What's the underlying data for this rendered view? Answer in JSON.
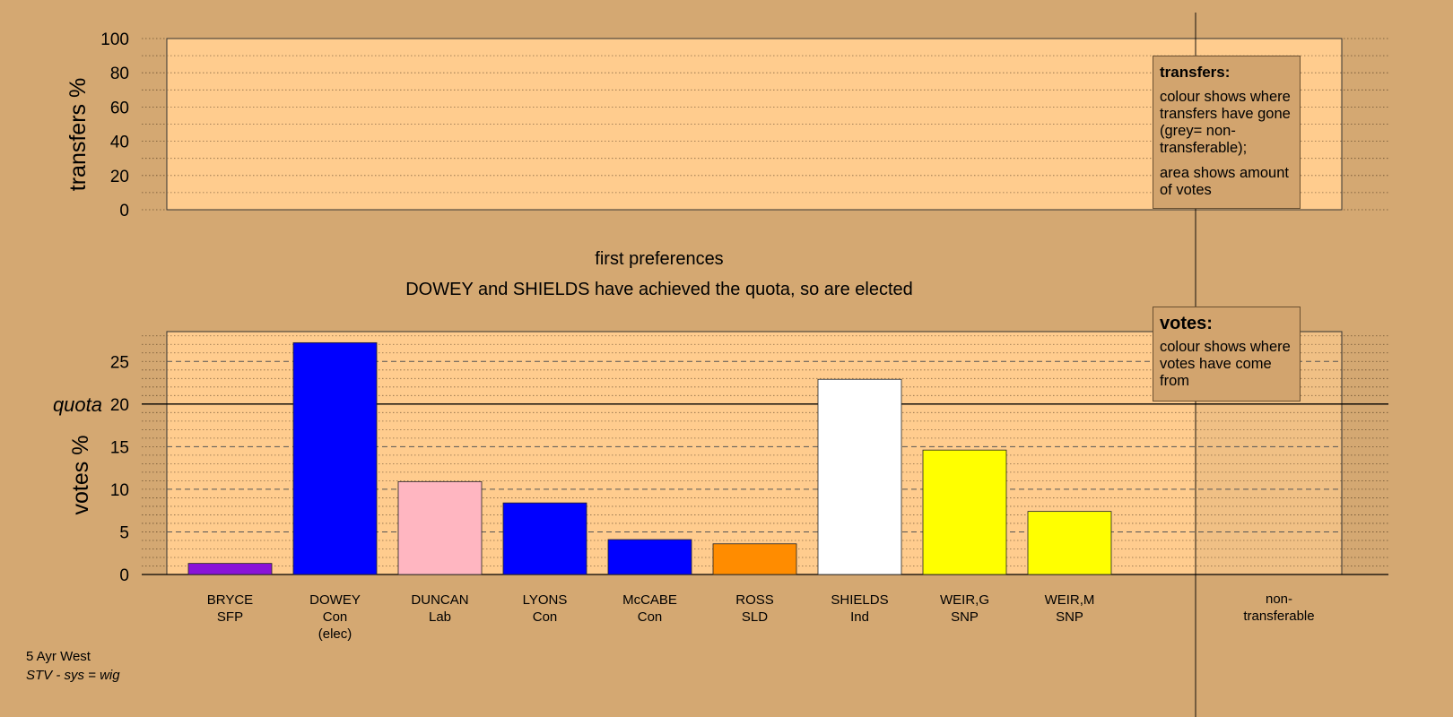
{
  "chart_data": [
    {
      "type": "area",
      "ylabel": "transfers %",
      "ylim": [
        0,
        100
      ],
      "yticks": [
        0,
        20,
        40,
        60,
        80,
        100
      ],
      "values": []
    },
    {
      "type": "bar",
      "title": "first preferences",
      "subtitle": "DOWEY and SHIELDS have achieved the quota, so are elected",
      "ylabel": "votes %",
      "ylim": [
        0,
        28.5
      ],
      "yticks": [
        0,
        5,
        10,
        15,
        20,
        25
      ],
      "quota": 20,
      "quota_label": "quota",
      "categories": [
        {
          "name": "BRYCE",
          "party": "SFP",
          "note": "",
          "value": 1.3,
          "color": "#8a12d8"
        },
        {
          "name": "DOWEY",
          "party": "Con",
          "note": "(elec)",
          "value": 27.2,
          "color": "#0000ff"
        },
        {
          "name": "DUNCAN",
          "party": "Lab",
          "note": "",
          "value": 10.9,
          "color": "#ffb6c1"
        },
        {
          "name": "LYONS",
          "party": "Con",
          "note": "",
          "value": 8.4,
          "color": "#0000ff"
        },
        {
          "name": "McCABE",
          "party": "Con",
          "note": "",
          "value": 4.1,
          "color": "#0000ff"
        },
        {
          "name": "ROSS",
          "party": "SLD",
          "note": "",
          "value": 3.6,
          "color": "#ff8c00"
        },
        {
          "name": "SHIELDS",
          "party": "Ind",
          "note": "",
          "value": 22.9,
          "color": "#ffffff"
        },
        {
          "name": "WEIR,G",
          "party": "SNP",
          "note": "",
          "value": 14.6,
          "color": "#ffff00"
        },
        {
          "name": "WEIR,M",
          "party": "SNP",
          "note": "",
          "value": 7.4,
          "color": "#ffff00"
        }
      ],
      "non_transferable_label": [
        "non-",
        "transferable"
      ]
    }
  ],
  "legend_transfers": {
    "title": "transfers:",
    "line1": "colour shows where transfers have gone (grey= non-transferable);",
    "line2": "area shows amount of votes"
  },
  "legend_votes": {
    "title": "votes:",
    "line1": "colour shows where votes have come from"
  },
  "footer": {
    "area": "5 Ayr West",
    "system": "STV - sys = wig"
  },
  "colors": {
    "background": "#d4a872",
    "plot_fill": "#ffcc8e"
  }
}
